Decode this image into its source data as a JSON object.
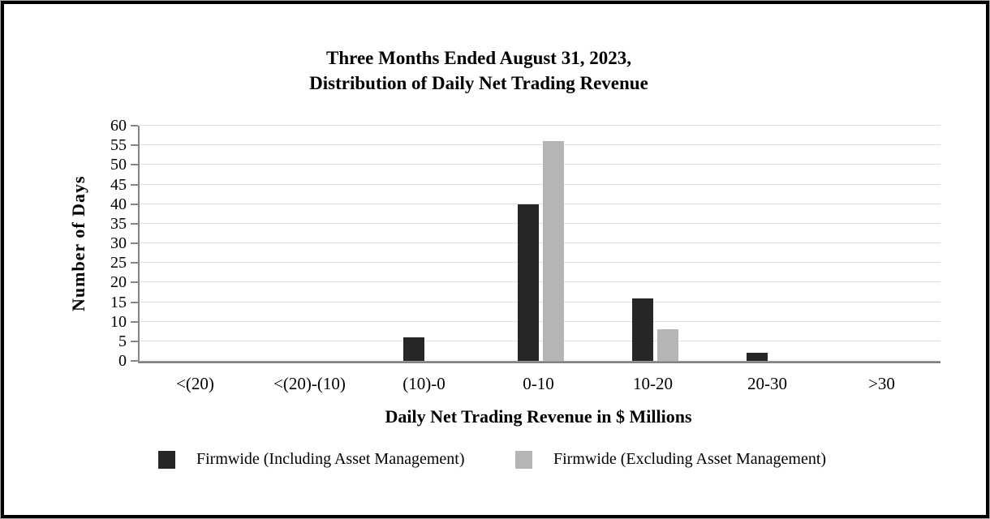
{
  "chart_data": {
    "type": "bar",
    "title_line1": "Three Months Ended August 31, 2023,",
    "title_line2": "Distribution of Daily Net Trading Revenue",
    "categories": [
      "<(20)",
      "<(20)-(10)",
      "(10)-0",
      "0-10",
      "10-20",
      "20-30",
      ">30"
    ],
    "series": [
      {
        "name": "Firmwide (Including Asset Management)",
        "color": "#262626",
        "values": [
          0,
          0,
          6,
          40,
          16,
          2,
          0
        ]
      },
      {
        "name": "Firmwide (Excluding Asset Management)",
        "color": "#b5b5b5",
        "values": [
          0,
          0,
          0,
          56,
          8,
          0,
          0
        ]
      }
    ],
    "xlabel": "Daily Net Trading Revenue in $ Millions",
    "ylabel": "Number of Days",
    "ylim": [
      0,
      60
    ],
    "ytick_step": 5,
    "grid": true,
    "legend_position": "bottom"
  },
  "colors": {
    "gridline": "#e0e0e0",
    "axis": "#858585",
    "frame_border": "#000000"
  }
}
